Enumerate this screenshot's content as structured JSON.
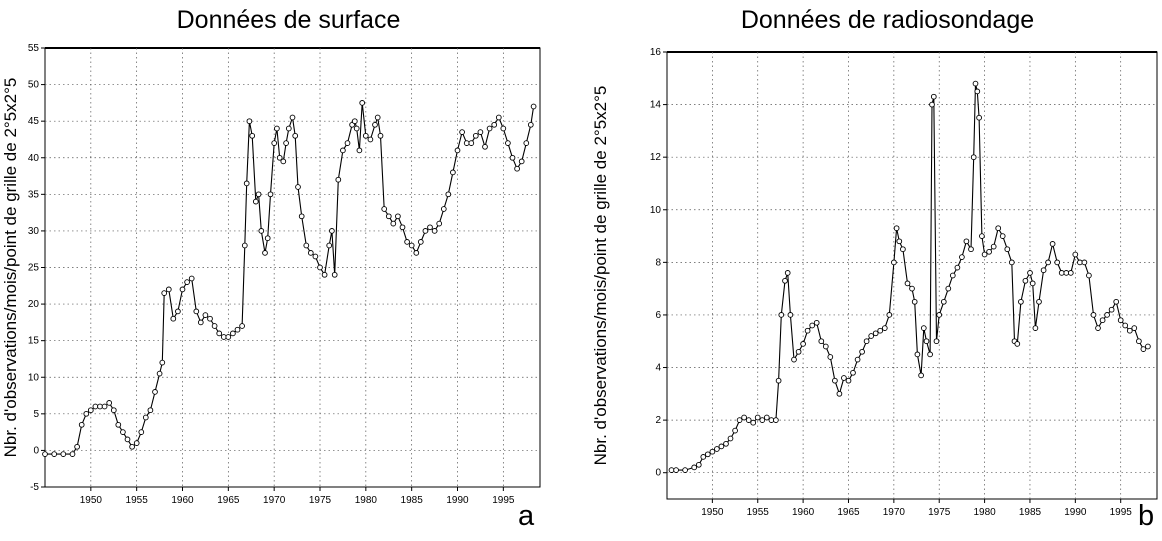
{
  "chart_data": [
    {
      "type": "line",
      "panel_label": "a",
      "title": "Données de surface",
      "xlabel": "",
      "ylabel": "Nbr. d'observations/mois/point de grille de 2°5x2°5",
      "xlim": [
        1945,
        1999
      ],
      "ylim": [
        -5,
        55
      ],
      "xticks": [
        1950,
        1955,
        1960,
        1965,
        1970,
        1975,
        1980,
        1985,
        1990,
        1995
      ],
      "yticks": [
        -5,
        0,
        5,
        10,
        15,
        20,
        25,
        30,
        35,
        40,
        45,
        50,
        55
      ],
      "grid": true,
      "markers": "open-circle",
      "series": [
        {
          "x": [
            1945.0,
            1946.0,
            1947.0,
            1948.0,
            1948.5,
            1949.0,
            1949.5,
            1950.0,
            1950.5,
            1951.0,
            1951.5,
            1952.0,
            1952.5,
            1953.0,
            1953.5,
            1954.0,
            1954.5,
            1955.0,
            1955.5,
            1956.0,
            1956.5,
            1957.0,
            1957.5,
            1957.8,
            1958.0,
            1958.5,
            1959.0,
            1959.5,
            1960.0,
            1960.5,
            1961.0,
            1961.5,
            1962.0,
            1962.5,
            1963.0,
            1963.5,
            1964.0,
            1964.5,
            1965.0,
            1965.5,
            1966.0,
            1966.5,
            1966.8,
            1967.0,
            1967.3,
            1967.6,
            1968.0,
            1968.3,
            1968.6,
            1969.0,
            1969.3,
            1969.6,
            1970.0,
            1970.3,
            1970.6,
            1971.0,
            1971.3,
            1971.6,
            1972.0,
            1972.3,
            1972.6,
            1973.0,
            1973.5,
            1974.0,
            1974.5,
            1975.0,
            1975.5,
            1976.0,
            1976.3,
            1976.6,
            1977.0,
            1977.5,
            1978.0,
            1978.5,
            1978.8,
            1979.0,
            1979.3,
            1979.6,
            1980.0,
            1980.5,
            1981.0,
            1981.3,
            1981.6,
            1982.0,
            1982.5,
            1983.0,
            1983.5,
            1984.0,
            1984.5,
            1985.0,
            1985.5,
            1986.0,
            1986.5,
            1987.0,
            1987.5,
            1988.0,
            1988.5,
            1989.0,
            1989.5,
            1990.0,
            1990.5,
            1991.0,
            1991.5,
            1992.0,
            1992.5,
            1993.0,
            1993.5,
            1994.0,
            1994.5,
            1995.0,
            1995.5,
            1996.0,
            1996.5,
            1997.0,
            1997.5,
            1998.0,
            1998.3
          ],
          "values": [
            -0.5,
            -0.5,
            -0.5,
            -0.5,
            0.5,
            3.5,
            5.0,
            5.5,
            6.0,
            6.0,
            6.0,
            6.5,
            5.5,
            3.5,
            2.5,
            1.5,
            0.5,
            1.0,
            2.5,
            4.5,
            5.5,
            8.0,
            10.5,
            12.0,
            21.5,
            22.0,
            18.0,
            19.0,
            22.0,
            23.0,
            23.5,
            19.0,
            17.5,
            18.5,
            18.0,
            17.0,
            16.0,
            15.5,
            15.5,
            16.0,
            16.5,
            17.0,
            28.0,
            36.5,
            45.0,
            43.0,
            34.0,
            35.0,
            30.0,
            27.0,
            29.0,
            35.0,
            42.0,
            44.0,
            40.0,
            39.5,
            42.0,
            44.0,
            45.5,
            43.0,
            36.0,
            32.0,
            28.0,
            27.0,
            26.5,
            25.0,
            24.0,
            28.0,
            30.0,
            24.0,
            37.0,
            41.0,
            42.0,
            44.5,
            45.0,
            44.0,
            41.0,
            47.5,
            43.0,
            42.5,
            44.5,
            45.5,
            43.0,
            33.0,
            32.0,
            31.0,
            32.0,
            30.5,
            28.5,
            28.0,
            27.0,
            28.5,
            30.0,
            30.5,
            30.0,
            31.0,
            33.0,
            35.0,
            38.0,
            41.0,
            43.5,
            42.0,
            42.0,
            43.0,
            43.5,
            41.5,
            44.0,
            44.5,
            45.5,
            44.0,
            42.0,
            40.0,
            38.5,
            39.5,
            42.0,
            44.5,
            47.0
          ]
        }
      ]
    },
    {
      "type": "line",
      "panel_label": "b",
      "title": "Données de radiosondage",
      "xlabel": "",
      "ylabel": "Nbr. d'observations/mois/point de grille de 2°5x2°5",
      "xlim": [
        1945,
        1999
      ],
      "ylim": [
        -1,
        16
      ],
      "xticks": [
        1950,
        1955,
        1960,
        1965,
        1970,
        1975,
        1980,
        1985,
        1990,
        1995
      ],
      "yticks": [
        0,
        2,
        4,
        6,
        8,
        10,
        12,
        14,
        16
      ],
      "grid": true,
      "markers": "open-circle",
      "series": [
        {
          "x": [
            1945.5,
            1946.0,
            1947.0,
            1948.0,
            1948.5,
            1949.0,
            1949.5,
            1950.0,
            1950.5,
            1951.0,
            1951.5,
            1952.0,
            1952.5,
            1953.0,
            1953.5,
            1954.0,
            1954.5,
            1955.0,
            1955.5,
            1956.0,
            1956.5,
            1957.0,
            1957.3,
            1957.6,
            1958.0,
            1958.3,
            1958.6,
            1959.0,
            1959.5,
            1960.0,
            1960.5,
            1961.0,
            1961.5,
            1962.0,
            1962.5,
            1963.0,
            1963.5,
            1964.0,
            1964.5,
            1965.0,
            1965.5,
            1966.0,
            1966.5,
            1967.0,
            1967.5,
            1968.0,
            1968.5,
            1969.0,
            1969.5,
            1970.0,
            1970.3,
            1970.6,
            1971.0,
            1971.5,
            1972.0,
            1972.3,
            1972.6,
            1973.0,
            1973.3,
            1973.6,
            1974.0,
            1974.2,
            1974.4,
            1974.7,
            1975.0,
            1975.5,
            1976.0,
            1976.5,
            1977.0,
            1977.5,
            1978.0,
            1978.5,
            1978.8,
            1979.0,
            1979.2,
            1979.4,
            1979.7,
            1980.0,
            1980.5,
            1981.0,
            1981.5,
            1982.0,
            1982.5,
            1983.0,
            1983.3,
            1983.6,
            1984.0,
            1984.5,
            1985.0,
            1985.3,
            1985.6,
            1986.0,
            1986.5,
            1987.0,
            1987.5,
            1988.0,
            1988.5,
            1989.0,
            1989.5,
            1990.0,
            1990.5,
            1991.0,
            1991.5,
            1992.0,
            1992.5,
            1993.0,
            1993.5,
            1994.0,
            1994.5,
            1995.0,
            1995.5,
            1996.0,
            1996.5,
            1997.0,
            1997.5,
            1998.0
          ],
          "values": [
            0.1,
            0.1,
            0.1,
            0.2,
            0.3,
            0.6,
            0.7,
            0.8,
            0.9,
            1.0,
            1.1,
            1.3,
            1.6,
            2.0,
            2.1,
            2.0,
            1.9,
            2.1,
            2.0,
            2.1,
            2.0,
            2.0,
            3.5,
            6.0,
            7.3,
            7.6,
            6.0,
            4.3,
            4.6,
            4.9,
            5.4,
            5.6,
            5.7,
            5.0,
            4.8,
            4.4,
            3.5,
            3.0,
            3.6,
            3.5,
            3.8,
            4.3,
            4.6,
            5.0,
            5.2,
            5.3,
            5.4,
            5.5,
            6.0,
            8.0,
            9.3,
            8.8,
            8.5,
            7.2,
            7.0,
            6.5,
            4.5,
            3.7,
            5.5,
            5.0,
            4.5,
            14.0,
            14.3,
            5.0,
            6.0,
            6.5,
            7.0,
            7.5,
            7.8,
            8.2,
            8.8,
            8.5,
            12.0,
            14.8,
            14.5,
            13.5,
            9.0,
            8.3,
            8.4,
            8.6,
            9.3,
            9.0,
            8.5,
            8.0,
            5.0,
            4.9,
            6.5,
            7.3,
            7.6,
            7.2,
            5.5,
            6.5,
            7.7,
            8.0,
            8.7,
            8.0,
            7.6,
            7.6,
            7.6,
            8.3,
            8.0,
            8.0,
            7.5,
            6.0,
            5.5,
            5.8,
            6.0,
            6.2,
            6.5,
            5.8,
            5.6,
            5.4,
            5.5,
            5.0,
            4.7,
            4.8
          ]
        }
      ]
    }
  ]
}
